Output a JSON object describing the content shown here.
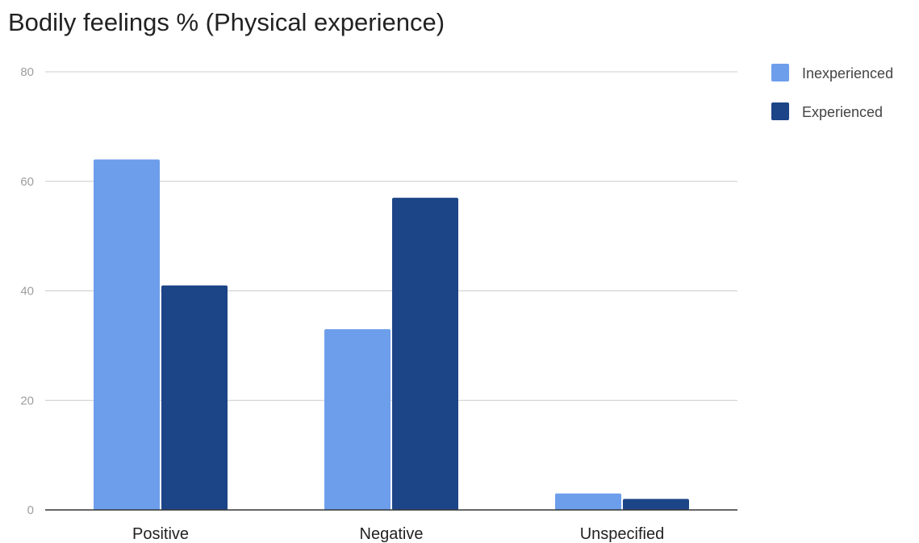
{
  "chart_data": {
    "type": "bar",
    "title": "Bodily feelings % (Physical experience)",
    "xlabel": "",
    "ylabel": "",
    "categories": [
      "Positive",
      "Negative",
      "Unspecified"
    ],
    "series": [
      {
        "name": "Inexperienced",
        "color": "#6d9eeb",
        "values": [
          64,
          33,
          3
        ]
      },
      {
        "name": "Experienced",
        "color": "#1c4587",
        "values": [
          41,
          57,
          2
        ]
      }
    ],
    "ylim": [
      0,
      80
    ],
    "yticks": [
      0,
      20,
      40,
      60,
      80
    ],
    "grid": true,
    "legend_position": "top-right",
    "grid_color": "#cccccc",
    "axis_color": "#333333"
  }
}
